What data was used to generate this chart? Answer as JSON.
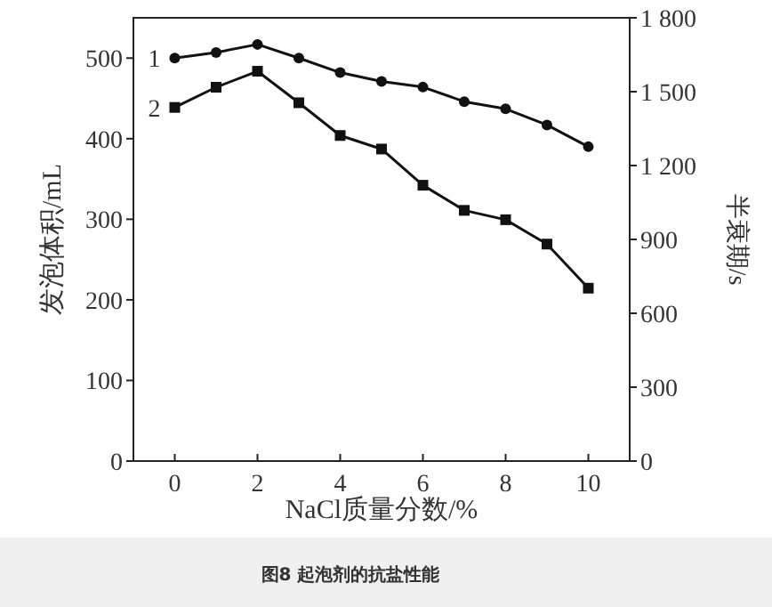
{
  "chart_data": {
    "type": "line",
    "title": "图8 起泡剂的抗盐性能",
    "xlabel": "NaCl质量分数/%",
    "ylabel": "发泡体积/mL",
    "y2label": "半衰期/s",
    "x": [
      0,
      1,
      2,
      3,
      4,
      5,
      6,
      7,
      8,
      9,
      10
    ],
    "xlim": [
      -1,
      11
    ],
    "xticks": [
      0,
      2,
      4,
      6,
      8,
      10
    ],
    "ylim": [
      0,
      550
    ],
    "yticks": [
      0,
      100,
      200,
      300,
      400,
      500
    ],
    "y2lim": [
      0,
      1800
    ],
    "y2ticks": [
      0,
      300,
      600,
      900,
      {
        "value": 1200,
        "label": "1 200"
      },
      {
        "value": 1500,
        "label": "1 500"
      },
      {
        "value": 1800,
        "label": "1 800"
      }
    ],
    "series": [
      {
        "name": "1",
        "color": "#111111",
        "marker": "circle",
        "values": [
          500,
          507,
          517,
          500,
          482,
          471,
          464,
          446,
          437,
          417,
          390
        ]
      },
      {
        "name": "2",
        "color": "#111111",
        "marker": "square",
        "axis": "y2",
        "values": [
          1436,
          1518,
          1583,
          1455,
          1322,
          1267,
          1120,
          1018,
          980,
          881,
          702
        ]
      }
    ]
  }
}
